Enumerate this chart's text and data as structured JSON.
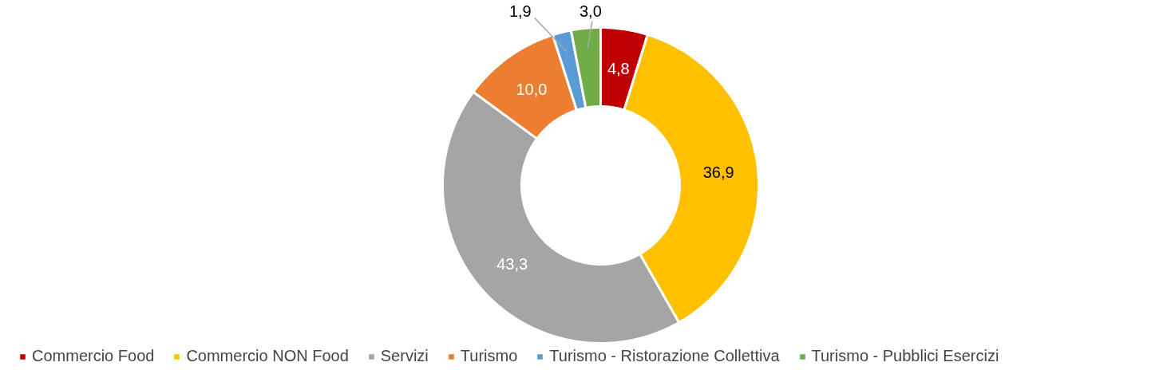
{
  "chart_data": {
    "type": "donut",
    "categories": [
      "Commercio Food",
      "Commercio NON Food",
      "Servizi",
      "Turismo",
      "Turismo - Ristorazione Collettiva",
      "Turismo - Pubblici Esercizi"
    ],
    "values": [
      4.8,
      36.9,
      43.3,
      10.0,
      1.9,
      3.0
    ],
    "colors": [
      "#c00000",
      "#ffc000",
      "#a5a5a5",
      "#ed7d31",
      "#5b9bd5",
      "#70ad47"
    ],
    "value_labels": [
      "4,8",
      "36,9",
      "43,3",
      "10,0",
      "1,9",
      "3,0"
    ],
    "legend": "bottom"
  }
}
